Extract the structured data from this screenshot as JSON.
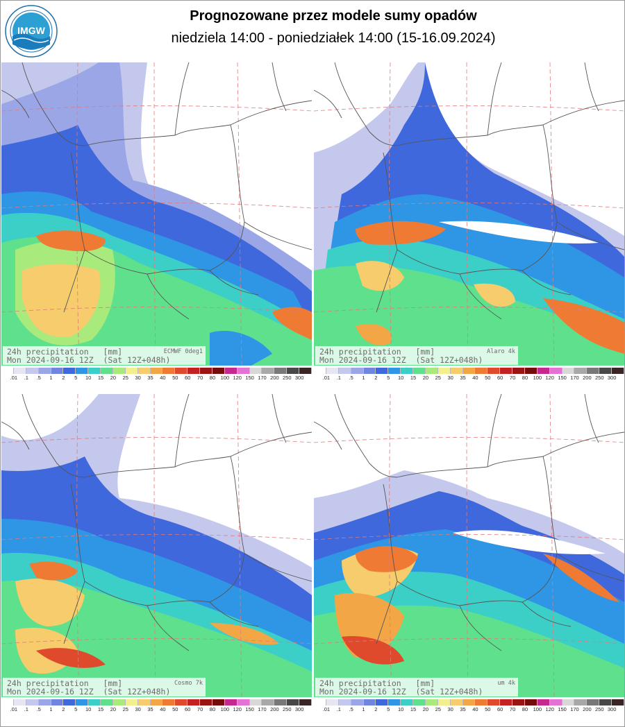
{
  "header": {
    "title": "Prognozowane przez modele sumy opadów",
    "subtitle": "niedziela 14:00 - poniedziałek 14:00 (15-16.09.2024)",
    "logo_text": "IMGW",
    "logo_ring_text": "INSTYTUT METEOROLOGII I GOSPODARKI WODNEJ"
  },
  "legend": {
    "labels": [
      ".01",
      ".1",
      ".5",
      "1",
      "2",
      "5",
      "10",
      "15",
      "20",
      "25",
      "30",
      "35",
      "40",
      "50",
      "60",
      "70",
      "80",
      "100",
      "120",
      "150",
      "170",
      "200",
      "250",
      "300"
    ],
    "colors": [
      "#ffffff",
      "#e6e6f2",
      "#c4c8ec",
      "#9ba6e6",
      "#6f85e0",
      "#3f68dc",
      "#2f96e6",
      "#3ccfc8",
      "#5fe08c",
      "#a8ea7c",
      "#f2f08e",
      "#f6cc6c",
      "#f3a646",
      "#ef7a34",
      "#e04a2c",
      "#c42222",
      "#9a1414",
      "#740c0c",
      "#c5288e",
      "#e472d4",
      "#d8d8d8",
      "#a8a8a8",
      "#787878",
      "#484848",
      "#3a2424"
    ]
  },
  "panels": [
    {
      "line1": "24h precipitation   [mm]",
      "line2": "Mon 2024-09-16 12Z  (Sat 12Z+048h)",
      "model": "ECMWF 0deg1"
    },
    {
      "line1": "24h precipitation   [mm]",
      "line2": "Mon 2024-09-16 12Z  (Sat 12Z+048h)",
      "model": "Alaro 4k"
    },
    {
      "line1": "24h precipitation   [mm]",
      "line2": "Mon 2024-09-16 12Z  (Sat 12Z+048h)",
      "model": "Cosmo 7k"
    },
    {
      "line1": "24h precipitation   [mm]",
      "line2": "Mon 2024-09-16 12Z  (Sat 12Z+048h)",
      "model": "um 4k"
    }
  ]
}
